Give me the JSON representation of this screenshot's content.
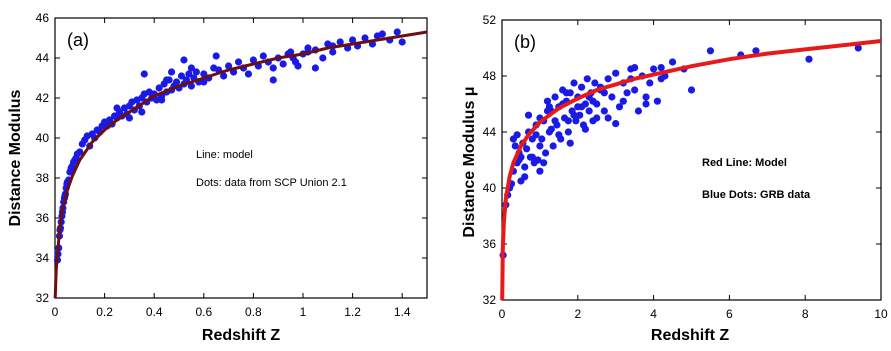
{
  "chart_data": [
    {
      "type": "scatter",
      "panel_label": "(a)",
      "xlabel": "Redshift Z",
      "ylabel": "Distance Modulus",
      "xlim": [
        0,
        1.5
      ],
      "ylim": [
        32,
        46
      ],
      "xticks": [
        "0",
        "0.2",
        "0.4",
        "0.6",
        "0.8",
        "1",
        "1.2",
        "1.4"
      ],
      "yticks": [
        "32",
        "34",
        "36",
        "38",
        "40",
        "42",
        "44",
        "46"
      ],
      "annotations": [
        "Line: model",
        "Dots: data from SCP Union 2.1"
      ],
      "colors": {
        "points": "#1a1ae6",
        "line": "#6b1010"
      },
      "model_curve": {
        "x": [
          0.001,
          0.005,
          0.01,
          0.02,
          0.03,
          0.05,
          0.07,
          0.1,
          0.15,
          0.2,
          0.25,
          0.3,
          0.4,
          0.5,
          0.6,
          0.7,
          0.8,
          0.9,
          1.0,
          1.1,
          1.2,
          1.3,
          1.4,
          1.5
        ],
        "y": [
          32.0,
          33.4,
          34.2,
          35.6,
          36.4,
          37.4,
          38.1,
          38.9,
          39.8,
          40.4,
          40.9,
          41.3,
          42.1,
          42.6,
          43.0,
          43.4,
          43.7,
          44.0,
          44.2,
          44.5,
          44.7,
          44.9,
          45.1,
          45.3
        ]
      },
      "points": {
        "x": [
          0.01,
          0.012,
          0.015,
          0.018,
          0.02,
          0.022,
          0.025,
          0.028,
          0.03,
          0.032,
          0.035,
          0.038,
          0.04,
          0.042,
          0.045,
          0.048,
          0.05,
          0.055,
          0.06,
          0.065,
          0.07,
          0.075,
          0.08,
          0.085,
          0.09,
          0.1,
          0.11,
          0.12,
          0.13,
          0.14,
          0.15,
          0.16,
          0.17,
          0.18,
          0.19,
          0.2,
          0.21,
          0.22,
          0.23,
          0.24,
          0.25,
          0.26,
          0.27,
          0.28,
          0.29,
          0.3,
          0.31,
          0.32,
          0.33,
          0.34,
          0.35,
          0.36,
          0.37,
          0.38,
          0.39,
          0.4,
          0.41,
          0.42,
          0.43,
          0.44,
          0.45,
          0.46,
          0.47,
          0.48,
          0.49,
          0.5,
          0.51,
          0.52,
          0.53,
          0.54,
          0.55,
          0.56,
          0.57,
          0.58,
          0.6,
          0.62,
          0.64,
          0.66,
          0.68,
          0.7,
          0.72,
          0.74,
          0.76,
          0.78,
          0.8,
          0.82,
          0.84,
          0.86,
          0.88,
          0.9,
          0.92,
          0.94,
          0.96,
          0.98,
          1.0,
          1.02,
          1.05,
          1.08,
          1.1,
          1.12,
          1.15,
          1.18,
          1.2,
          1.22,
          1.25,
          1.28,
          1.3,
          1.32,
          1.35,
          1.38,
          1.4,
          0.36,
          0.3,
          0.52,
          0.45,
          0.65,
          0.88,
          0.97,
          1.05,
          1.12,
          1.02,
          0.95,
          0.25,
          0.43,
          0.47,
          0.55,
          0.6,
          0.35
        ],
        "y": [
          33.9,
          34.2,
          34.5,
          35.1,
          35.4,
          35.5,
          35.8,
          36.1,
          36.3,
          36.5,
          36.8,
          37.0,
          37.1,
          37.2,
          37.5,
          37.7,
          37.8,
          37.9,
          38.3,
          38.5,
          38.6,
          38.8,
          38.9,
          39.0,
          39.2,
          39.3,
          39.7,
          39.9,
          40.1,
          39.6,
          40.2,
          40.0,
          40.4,
          40.3,
          40.6,
          40.8,
          40.6,
          40.9,
          40.7,
          41.1,
          41.0,
          41.3,
          41.1,
          41.5,
          41.2,
          41.6,
          41.8,
          41.4,
          41.9,
          41.6,
          42.0,
          42.2,
          41.8,
          42.3,
          42.0,
          42.2,
          41.9,
          42.5,
          42.1,
          42.7,
          42.3,
          42.9,
          42.4,
          42.6,
          42.8,
          42.5,
          43.1,
          42.7,
          42.9,
          43.2,
          42.6,
          43.0,
          43.3,
          42.8,
          43.2,
          43.0,
          43.5,
          43.4,
          43.1,
          43.6,
          43.3,
          43.8,
          43.5,
          43.2,
          43.9,
          43.6,
          44.1,
          43.8,
          43.5,
          44.0,
          43.7,
          44.2,
          44.0,
          43.6,
          44.2,
          44.5,
          44.4,
          44.0,
          44.7,
          44.3,
          44.8,
          44.5,
          44.9,
          44.6,
          45.0,
          44.7,
          45.1,
          45.2,
          44.9,
          45.3,
          44.8,
          43.2,
          41.0,
          43.9,
          42.9,
          44.1,
          42.9,
          43.8,
          43.5,
          44.6,
          44.3,
          44.3,
          41.5,
          41.9,
          43.3,
          43.5,
          42.8,
          41.3
        ]
      }
    },
    {
      "type": "scatter",
      "panel_label": "(b)",
      "xlabel": "Redshift Z",
      "ylabel": "Distance Modulus μ",
      "xlim": [
        0,
        10
      ],
      "ylim": [
        32,
        52
      ],
      "xticks": [
        "0",
        "2",
        "4",
        "6",
        "8",
        "10"
      ],
      "yticks": [
        "32",
        "36",
        "40",
        "44",
        "48",
        "52"
      ],
      "annotations": [
        "Red Line:  Model",
        "Blue Dots: GRB data"
      ],
      "colors": {
        "points": "#1a1ae6",
        "line": "#e61a1a"
      },
      "model_curve": {
        "x": [
          0.005,
          0.02,
          0.05,
          0.1,
          0.2,
          0.3,
          0.5,
          0.7,
          1.0,
          1.5,
          2.0,
          2.5,
          3.0,
          3.5,
          4.0,
          5.0,
          6.0,
          7.0,
          8.0,
          9.0,
          10.0
        ],
        "y": [
          32.0,
          35.6,
          37.6,
          39.2,
          40.8,
          41.8,
          43.0,
          43.8,
          44.7,
          45.7,
          46.4,
          47.0,
          47.4,
          47.8,
          48.1,
          48.7,
          49.2,
          49.6,
          49.9,
          50.2,
          50.5
        ]
      },
      "points": {
        "x": [
          0.03,
          0.1,
          0.15,
          0.2,
          0.25,
          0.3,
          0.35,
          0.4,
          0.45,
          0.5,
          0.55,
          0.6,
          0.65,
          0.7,
          0.75,
          0.8,
          0.85,
          0.9,
          0.95,
          1.0,
          1.05,
          1.1,
          1.15,
          1.2,
          1.25,
          1.3,
          1.35,
          1.4,
          1.45,
          1.5,
          1.55,
          1.6,
          1.65,
          1.7,
          1.75,
          1.8,
          1.85,
          1.9,
          1.95,
          2.0,
          2.05,
          2.1,
          2.15,
          2.2,
          2.25,
          2.3,
          2.35,
          2.4,
          2.45,
          2.5,
          2.6,
          2.7,
          2.8,
          2.9,
          3.0,
          3.1,
          3.2,
          3.3,
          3.4,
          3.5,
          3.6,
          3.7,
          3.8,
          3.9,
          4.0,
          4.1,
          4.2,
          4.3,
          4.5,
          4.8,
          5.0,
          5.5,
          6.3,
          6.7,
          8.1,
          9.4,
          0.4,
          0.6,
          0.8,
          1.0,
          1.2,
          1.4,
          1.6,
          1.8,
          2.0,
          2.2,
          2.4,
          2.6,
          2.8,
          3.0,
          3.2,
          3.4,
          1.1,
          1.3,
          1.5,
          1.7,
          1.9,
          2.1,
          2.3,
          2.5,
          0.5,
          0.7,
          0.9,
          3.5,
          3.8,
          4.2,
          2.7,
          1.0,
          0.3,
          0.45,
          1.25,
          1.75
        ],
        "y": [
          35.2,
          38.8,
          39.5,
          40.0,
          40.3,
          41.2,
          43.0,
          41.8,
          42.5,
          40.5,
          43.2,
          41.5,
          42.8,
          44.0,
          42.2,
          43.5,
          41.8,
          44.5,
          42.0,
          45.0,
          43.5,
          44.8,
          42.5,
          46.2,
          44.0,
          45.5,
          43.0,
          46.5,
          44.5,
          45.8,
          43.5,
          47.0,
          45.0,
          46.2,
          44.0,
          46.8,
          45.5,
          47.5,
          44.8,
          46.5,
          45.2,
          47.2,
          44.5,
          46.0,
          47.8,
          45.5,
          46.8,
          44.8,
          47.5,
          46.0,
          47.0,
          45.5,
          47.8,
          46.5,
          48.2,
          45.8,
          47.5,
          46.8,
          48.5,
          47.0,
          45.5,
          48.0,
          46.5,
          47.5,
          48.5,
          46.2,
          47.8,
          48.0,
          49.0,
          48.5,
          47.0,
          49.8,
          49.5,
          49.8,
          49.2,
          50.0,
          43.8,
          40.8,
          42.2,
          43.0,
          45.5,
          44.8,
          46.0,
          43.2,
          45.8,
          44.2,
          46.2,
          47.2,
          45.0,
          44.6,
          46.2,
          47.8,
          41.8,
          44.2,
          43.8,
          46.8,
          45.2,
          45.8,
          46.5,
          45.0,
          42.2,
          45.2,
          43.8,
          48.6,
          46.0,
          48.6,
          46.8,
          41.2,
          43.5,
          42.0,
          45.8,
          44.8
        ]
      }
    }
  ]
}
